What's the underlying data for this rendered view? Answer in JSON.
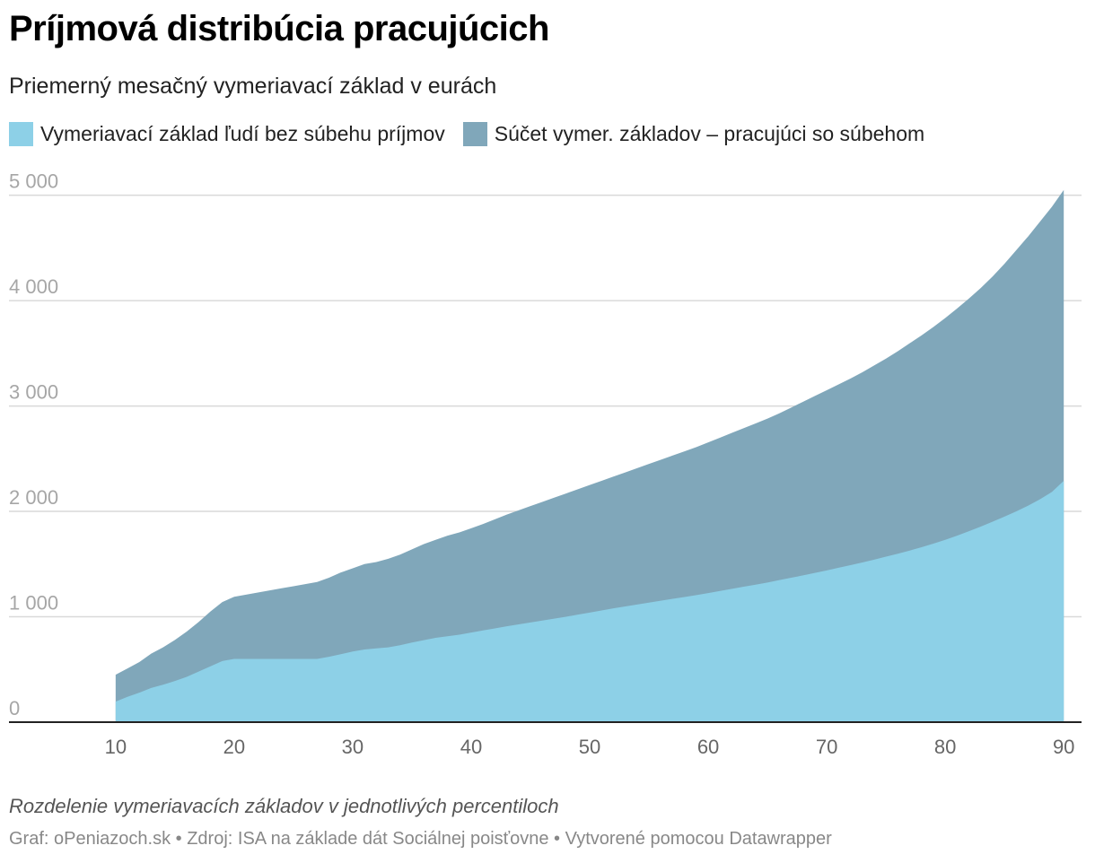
{
  "header": {
    "title": "Príjmová distribúcia pracujúcich",
    "subtitle": "Priemerný mesačný vymeriavací základ v eurách"
  },
  "legend": [
    {
      "label": "Vymeriavací základ ľudí bez súbehu príjmov",
      "color": "#8dd0e7"
    },
    {
      "label": "Súčet vymer. základov – pracujúci so súbehom",
      "color": "#80a7ba"
    }
  ],
  "note": "Rozdelenie vymeriavacích základov v jednotlivých percentiloch",
  "footer": "Graf: oPeniazoch.sk • Zdroj: ISA na základe dát Sociálnej poisťovne • Vytvorené pomocou Datawrapper",
  "chart_data": {
    "type": "area",
    "x": [
      10,
      11,
      12,
      13,
      14,
      15,
      16,
      17,
      18,
      19,
      20,
      21,
      22,
      23,
      24,
      25,
      26,
      27,
      28,
      29,
      30,
      31,
      32,
      33,
      34,
      35,
      36,
      37,
      38,
      39,
      40,
      41,
      42,
      43,
      44,
      45,
      46,
      47,
      48,
      49,
      50,
      51,
      52,
      53,
      54,
      55,
      56,
      57,
      58,
      59,
      60,
      61,
      62,
      63,
      64,
      65,
      66,
      67,
      68,
      69,
      70,
      71,
      72,
      73,
      74,
      75,
      76,
      77,
      78,
      79,
      80,
      81,
      82,
      83,
      84,
      85,
      86,
      87,
      88,
      89,
      90
    ],
    "series": [
      {
        "name": "Vymeriavací základ ľudí bez súbehu príjmov",
        "color": "#8dd0e7",
        "values": [
          195,
          240,
          280,
          325,
          355,
          390,
          430,
          480,
          530,
          580,
          600,
          600,
          600,
          600,
          600,
          600,
          600,
          600,
          620,
          645,
          670,
          690,
          700,
          710,
          730,
          755,
          778,
          800,
          815,
          830,
          850,
          870,
          890,
          910,
          928,
          946,
          964,
          982,
          1000,
          1020,
          1040,
          1060,
          1080,
          1098,
          1116,
          1134,
          1152,
          1170,
          1188,
          1206,
          1225,
          1245,
          1265,
          1285,
          1305,
          1325,
          1348,
          1370,
          1393,
          1416,
          1440,
          1465,
          1490,
          1515,
          1542,
          1570,
          1598,
          1628,
          1660,
          1694,
          1730,
          1770,
          1812,
          1856,
          1902,
          1950,
          2000,
          2055,
          2115,
          2185,
          2290
        ]
      },
      {
        "name": "Súčet vymer. základov – pracujúci so súbehom",
        "color": "#80a7ba",
        "values": [
          450,
          510,
          570,
          650,
          710,
          780,
          860,
          950,
          1050,
          1140,
          1190,
          1210,
          1230,
          1250,
          1270,
          1290,
          1310,
          1330,
          1370,
          1420,
          1460,
          1500,
          1520,
          1550,
          1590,
          1640,
          1690,
          1730,
          1770,
          1800,
          1840,
          1880,
          1925,
          1970,
          2010,
          2050,
          2090,
          2130,
          2170,
          2210,
          2250,
          2290,
          2330,
          2370,
          2410,
          2450,
          2490,
          2530,
          2570,
          2610,
          2655,
          2700,
          2745,
          2790,
          2835,
          2880,
          2930,
          2985,
          3040,
          3095,
          3150,
          3205,
          3260,
          3320,
          3385,
          3450,
          3520,
          3595,
          3670,
          3750,
          3835,
          3925,
          4020,
          4120,
          4230,
          4350,
          4480,
          4610,
          4750,
          4890,
          5050
        ]
      }
    ],
    "xlim": [
      1,
      91.5
    ],
    "ylim": [
      0,
      5150
    ],
    "xticks": [
      10,
      20,
      30,
      40,
      50,
      60,
      70,
      80,
      90
    ],
    "yticks": [
      0,
      1000,
      2000,
      3000,
      4000,
      5000
    ],
    "ytick_labels": [
      "0",
      "1 000",
      "2 000",
      "3 000",
      "4 000",
      "5 000"
    ],
    "xlabel": "",
    "ylabel": "",
    "grid": true,
    "legend_position": "top-left"
  }
}
